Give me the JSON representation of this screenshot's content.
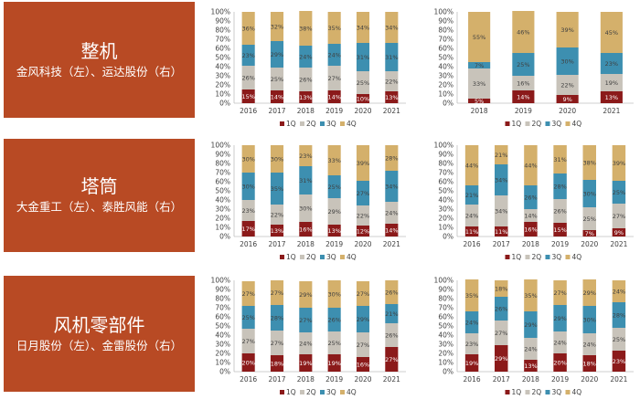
{
  "panels": [
    {
      "title": "整机",
      "subtitle": "金风科技（左）、运达股份（右）"
    },
    {
      "title": "塔筒",
      "subtitle": "大金重工（左）、泰胜风能（右）"
    },
    {
      "title": "风机零部件",
      "subtitle": "日月股份（左）、金雷股份（右）"
    }
  ],
  "series_colors": [
    "#8b1a1a",
    "#c8c3ba",
    "#3d8fb0",
    "#d4b06b"
  ],
  "chart_data": [
    {
      "type": "bar",
      "stacked": true,
      "normalized": true,
      "categories": [
        "2016",
        "2017",
        "2018",
        "2019",
        "2020",
        "2021"
      ],
      "yticks": [
        "0%",
        "10%",
        "20%",
        "30%",
        "40%",
        "50%",
        "60%",
        "70%",
        "80%",
        "90%",
        "100%"
      ],
      "ylim": [
        0,
        100
      ],
      "legend": "bottom",
      "series": [
        {
          "name": "1Q",
          "values": [
            15,
            14,
            13,
            14,
            10,
            13
          ],
          "labels": [
            "15%",
            "14%",
            "13%",
            "14%",
            "10%",
            "13%"
          ]
        },
        {
          "name": "2Q",
          "values": [
            26,
            25,
            26,
            27,
            25,
            22
          ],
          "labels": [
            "26%",
            "25%",
            "26%",
            "27%",
            "25%",
            "22%"
          ]
        },
        {
          "name": "3Q",
          "values": [
            23,
            29,
            24,
            24,
            31,
            31
          ],
          "labels": [
            "23%",
            "29%",
            "24%",
            "24%",
            "31%",
            "31%"
          ]
        },
        {
          "name": "4Q",
          "values": [
            36,
            32,
            38,
            35,
            34,
            34
          ],
          "labels": [
            "36%",
            "32%",
            "38%",
            "35%",
            "34%",
            "34%"
          ]
        }
      ]
    },
    {
      "type": "bar",
      "stacked": true,
      "normalized": true,
      "categories": [
        "2018",
        "2019",
        "2020",
        "2021"
      ],
      "yticks": [
        "0%",
        "10%",
        "20%",
        "30%",
        "40%",
        "50%",
        "60%",
        "70%",
        "80%",
        "90%",
        "100%"
      ],
      "ylim": [
        0,
        100
      ],
      "legend": "bottom",
      "series": [
        {
          "name": "1Q",
          "values": [
            5,
            14,
            9,
            13
          ],
          "labels": [
            "5%",
            "14%",
            "9%",
            "13%"
          ]
        },
        {
          "name": "2Q",
          "values": [
            33,
            16,
            22,
            19
          ],
          "labels": [
            "33%",
            "16%",
            "22%",
            "19%"
          ]
        },
        {
          "name": "3Q",
          "values": [
            7,
            25,
            30,
            23
          ],
          "labels": [
            "7%",
            "25%",
            "30%",
            "23%"
          ]
        },
        {
          "name": "4Q",
          "values": [
            55,
            46,
            39,
            45
          ],
          "labels": [
            "55%",
            "46%",
            "39%",
            "45%"
          ]
        }
      ]
    },
    {
      "type": "bar",
      "stacked": true,
      "normalized": true,
      "categories": [
        "2016",
        "2017",
        "2018",
        "2019",
        "2020",
        "2021"
      ],
      "yticks": [
        "0%",
        "10%",
        "20%",
        "30%",
        "40%",
        "50%",
        "60%",
        "70%",
        "80%",
        "90%",
        "100%"
      ],
      "ylim": [
        0,
        100
      ],
      "legend": "bottom",
      "series": [
        {
          "name": "1Q",
          "values": [
            17,
            13,
            16,
            13,
            12,
            14
          ],
          "labels": [
            "17%",
            "13%",
            "16%",
            "13%",
            "12%",
            "14%"
          ]
        },
        {
          "name": "2Q",
          "values": [
            23,
            22,
            30,
            29,
            22,
            24
          ],
          "labels": [
            "23%",
            "22%",
            "30%",
            "29%",
            "22%",
            "24%"
          ]
        },
        {
          "name": "3Q",
          "values": [
            30,
            35,
            31,
            25,
            27,
            34
          ],
          "labels": [
            "30%",
            "35%",
            "31%",
            "25%",
            "27%",
            "34%"
          ]
        },
        {
          "name": "4Q",
          "values": [
            30,
            30,
            23,
            33,
            39,
            28
          ],
          "labels": [
            "30%",
            "30%",
            "23%",
            "33%",
            "39%",
            "28%"
          ]
        }
      ]
    },
    {
      "type": "bar",
      "stacked": true,
      "normalized": true,
      "categories": [
        "2016",
        "2017",
        "2018",
        "2019",
        "2020",
        "2021"
      ],
      "yticks": [
        "0%",
        "10%",
        "20%",
        "30%",
        "40%",
        "50%",
        "60%",
        "70%",
        "80%",
        "90%",
        "100%"
      ],
      "ylim": [
        0,
        100
      ],
      "legend": "bottom",
      "series": [
        {
          "name": "1Q",
          "values": [
            11,
            11,
            16,
            15,
            7,
            9
          ],
          "labels": [
            "11%",
            "11%",
            "16%",
            "15%",
            "7%",
            "9%"
          ]
        },
        {
          "name": "2Q",
          "values": [
            24,
            34,
            14,
            26,
            25,
            27
          ],
          "labels": [
            "24%",
            "34%",
            "14%",
            "26%",
            "25%",
            "27%"
          ]
        },
        {
          "name": "3Q",
          "values": [
            21,
            34,
            26,
            28,
            30,
            25
          ],
          "labels": [
            "21%",
            "34%",
            "26%",
            "28%",
            "30%",
            "25%"
          ]
        },
        {
          "name": "4Q",
          "values": [
            44,
            21,
            44,
            31,
            38,
            39
          ],
          "labels": [
            "44%",
            "21%",
            "44%",
            "31%",
            "38%",
            "39%"
          ]
        }
      ]
    },
    {
      "type": "bar",
      "stacked": true,
      "normalized": true,
      "categories": [
        "2016",
        "2017",
        "2018",
        "2019",
        "2020",
        "2021"
      ],
      "yticks": [
        "0%",
        "10%",
        "20%",
        "30%",
        "40%",
        "50%",
        "60%",
        "70%",
        "80%",
        "90%",
        "100%"
      ],
      "ylim": [
        0,
        100
      ],
      "legend": "bottom",
      "series": [
        {
          "name": "1Q",
          "values": [
            20,
            18,
            19,
            19,
            16,
            27
          ],
          "labels": [
            "20%",
            "18%",
            "19%",
            "19%",
            "16%",
            "27%"
          ]
        },
        {
          "name": "2Q",
          "values": [
            27,
            27,
            24,
            25,
            27,
            26
          ],
          "labels": [
            "27%",
            "27%",
            "24%",
            "25%",
            "27%",
            "26%"
          ]
        },
        {
          "name": "3Q",
          "values": [
            25,
            28,
            27,
            26,
            29,
            21
          ],
          "labels": [
            "25%",
            "28%",
            "27%",
            "26%",
            "29%",
            "21%"
          ]
        },
        {
          "name": "4Q",
          "values": [
            27,
            27,
            29,
            30,
            27,
            26
          ],
          "labels": [
            "27%",
            "27%",
            "29%",
            "30%",
            "27%",
            "26%"
          ]
        }
      ]
    },
    {
      "type": "bar",
      "stacked": true,
      "normalized": true,
      "categories": [
        "2016",
        "2017",
        "2018",
        "2019",
        "2020",
        "2021"
      ],
      "yticks": [
        "0%",
        "10%",
        "20%",
        "30%",
        "40%",
        "50%",
        "60%",
        "70%",
        "80%",
        "90%",
        "100%"
      ],
      "ylim": [
        0,
        100
      ],
      "legend": "bottom",
      "series": [
        {
          "name": "1Q",
          "values": [
            19,
            29,
            13,
            20,
            18,
            23
          ],
          "labels": [
            "19%",
            "29%",
            "13%",
            "20%",
            "18%",
            "23%"
          ]
        },
        {
          "name": "2Q",
          "values": [
            23,
            27,
            24,
            24,
            24,
            25
          ],
          "labels": [
            "23%",
            "27%",
            "24%",
            "24%",
            "24%",
            "25%"
          ]
        },
        {
          "name": "3Q",
          "values": [
            24,
            26,
            29,
            29,
            30,
            28
          ],
          "labels": [
            "24%",
            "26%",
            "29%",
            "29%",
            "30%",
            "28%"
          ]
        },
        {
          "name": "4Q",
          "values": [
            35,
            18,
            35,
            27,
            29,
            24
          ],
          "labels": [
            "35%",
            "18%",
            "35%",
            "27%",
            "29%",
            "24%"
          ]
        }
      ]
    }
  ]
}
